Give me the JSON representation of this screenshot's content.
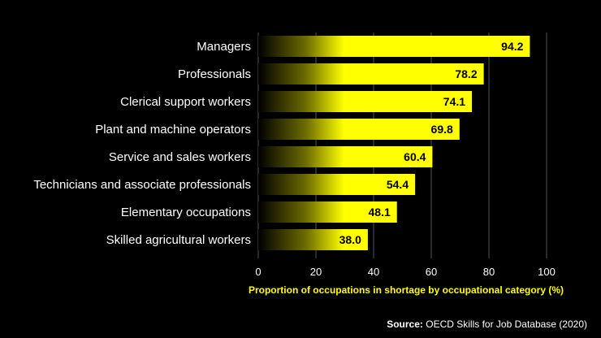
{
  "chart_data": {
    "type": "bar",
    "orientation": "horizontal",
    "categories": [
      "Managers",
      "Professionals",
      "Clerical support workers",
      "Plant and machine operators",
      "Service and sales workers",
      "Technicians and associate professionals",
      "Elementary occupations",
      "Skilled agricultural workers"
    ],
    "values": [
      94.2,
      78.2,
      74.1,
      69.8,
      60.4,
      54.4,
      48.1,
      38.0
    ],
    "value_labels": [
      "94.2",
      "78.2",
      "74.1",
      "69.8",
      "60.4",
      "54.4",
      "48.1",
      "38.0"
    ],
    "xlabel": "Proportion of occupations in shortage by occupational category (%)",
    "xlim": [
      0,
      100
    ],
    "xticks": [
      "0",
      "20",
      "40",
      "60",
      "80",
      "100"
    ],
    "grid": true,
    "legend": "none"
  },
  "source": {
    "label": "Source:",
    "text": "OECD Skills for Job Database (2020)"
  },
  "colors": {
    "background": "#000000",
    "bar": "#ffff00",
    "gridline": "#555555",
    "text": "#ffffff",
    "axis_label": "#ffff00"
  }
}
